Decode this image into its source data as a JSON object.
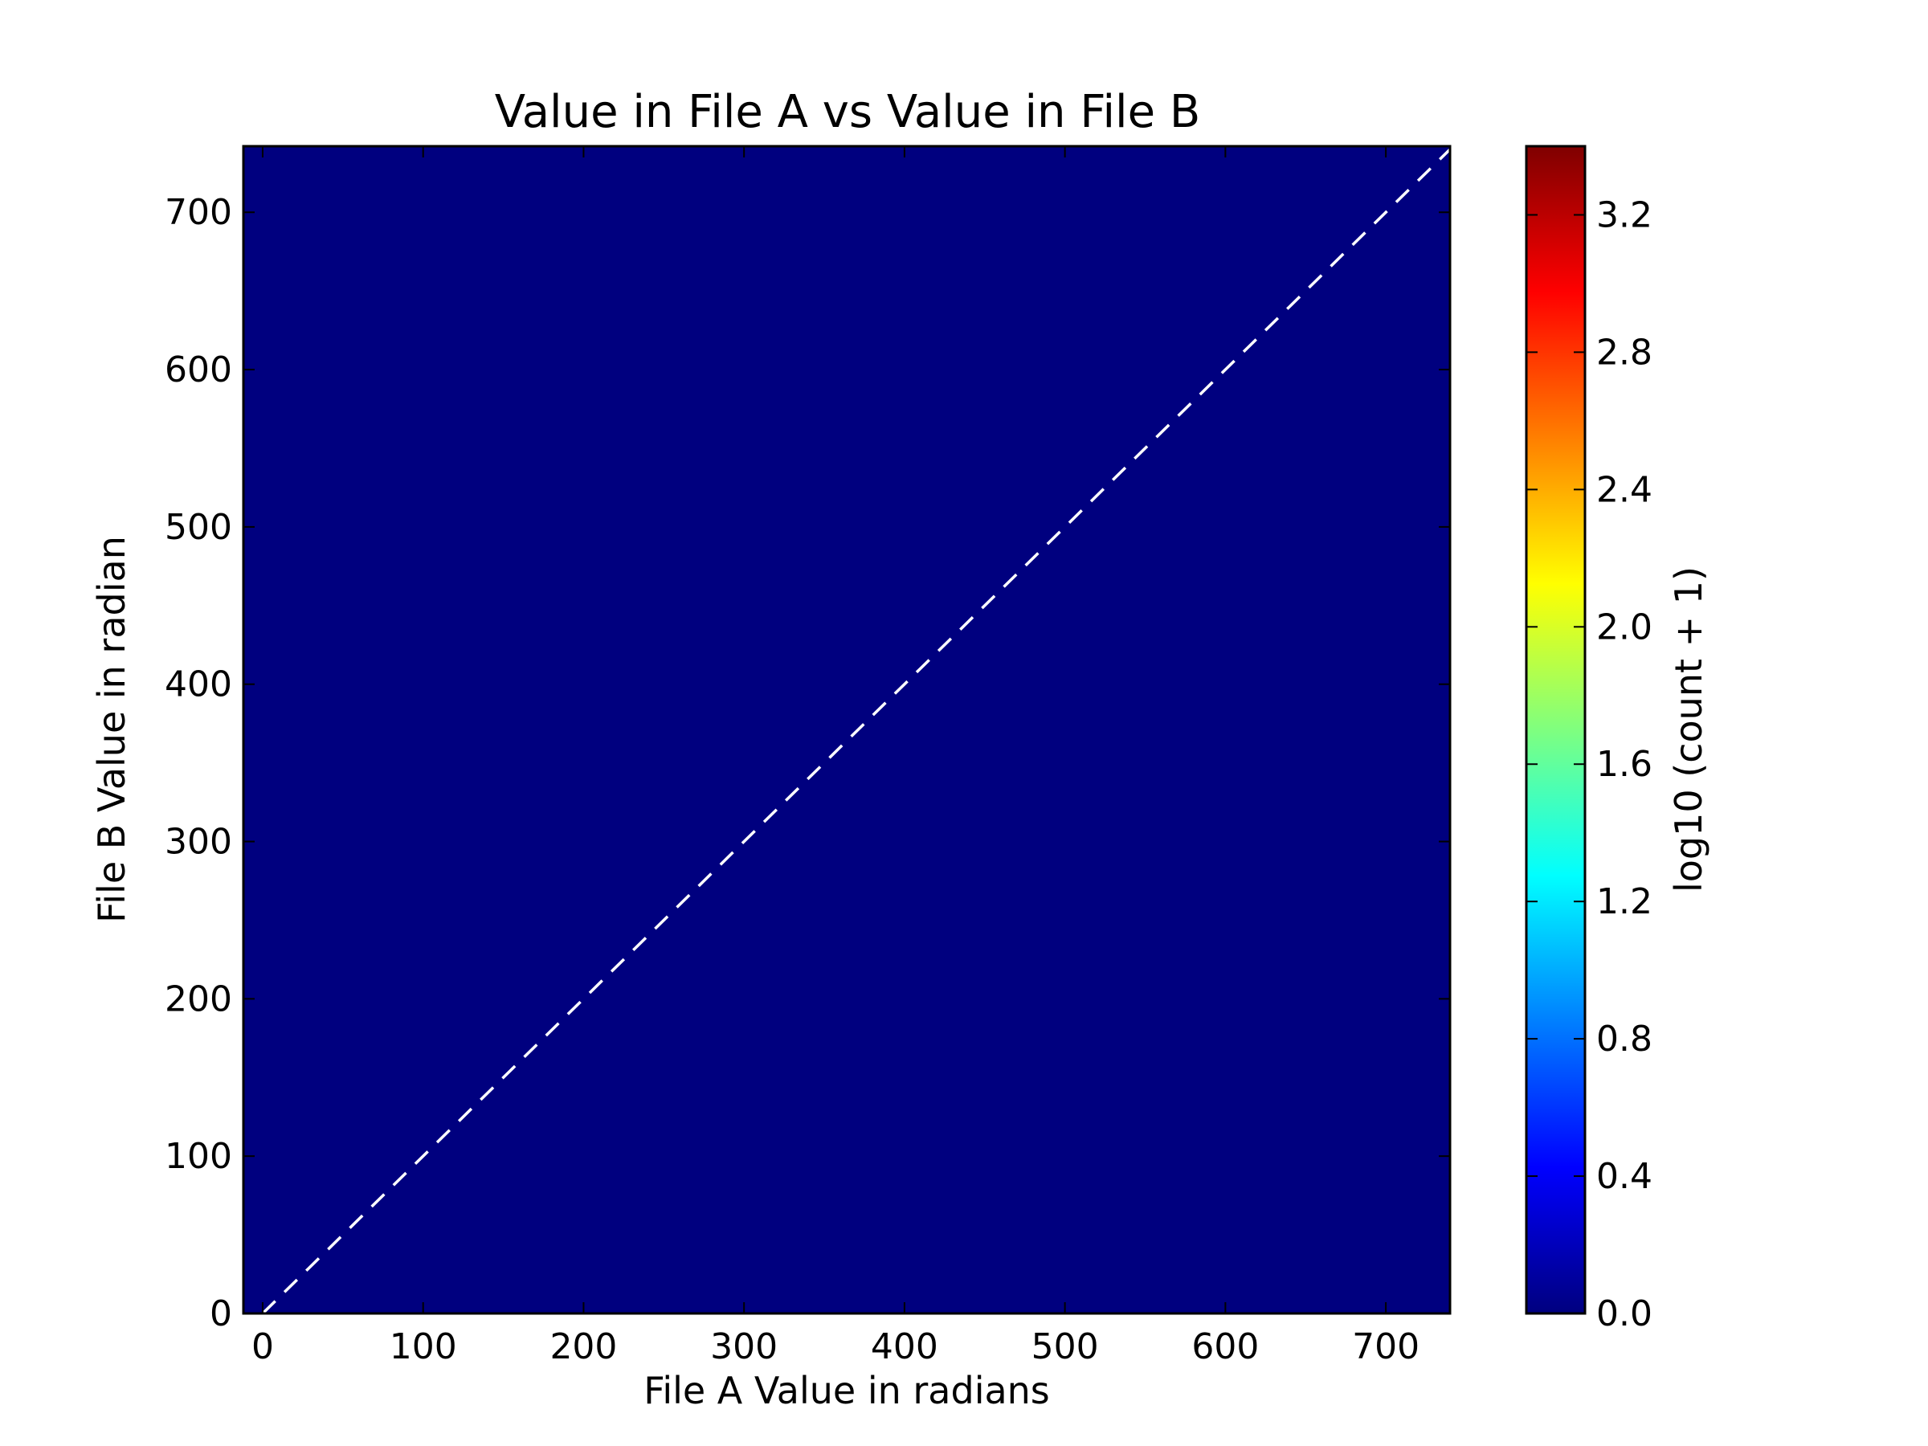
{
  "chart_data": {
    "type": "heatmap",
    "title": "Value in File A vs Value in File B",
    "xlabel": "File A Value in radians",
    "ylabel": "File B Value in radian",
    "xlim": [
      -12,
      740
    ],
    "ylim": [
      0,
      742
    ],
    "xticks": [
      0,
      100,
      200,
      300,
      400,
      500,
      600,
      700
    ],
    "yticks": [
      0,
      100,
      200,
      300,
      400,
      500,
      600,
      700
    ],
    "background_value": 0.0,
    "background_color": "#00007f",
    "reference_line": {
      "type": "identity",
      "style": "dashed",
      "color": "#ffffff",
      "x": [
        0,
        742
      ],
      "y": [
        0,
        742
      ]
    },
    "colorbar": {
      "label": "log10 (count + 1)",
      "colormap": "jet",
      "range": [
        0,
        3.4
      ],
      "ticks": [
        0.0,
        0.4,
        0.8,
        1.2,
        1.6,
        2.0,
        2.4,
        2.8,
        3.2
      ],
      "tick_labels": [
        "0.0",
        "0.4",
        "0.8",
        "1.2",
        "1.6",
        "2.0",
        "2.4",
        "2.8",
        "3.2"
      ],
      "stops": [
        "#00007f",
        "#0000ff",
        "#007fff",
        "#00ffff",
        "#7fff7f",
        "#ffff00",
        "#ff7f00",
        "#ff0000",
        "#7f0000"
      ]
    },
    "grid": false
  }
}
